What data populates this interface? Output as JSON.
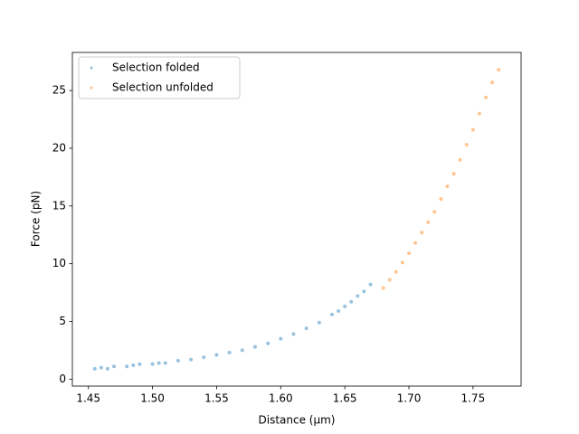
{
  "chart_data": {
    "type": "scatter",
    "x_label": "Distance (μm)",
    "y_label": "Force (pN)",
    "xlim": [
      1.4375,
      1.7875
    ],
    "ylim": [
      -0.6,
      28.3
    ],
    "xticks": [
      {
        "value": 1.45,
        "label": "1.45"
      },
      {
        "value": 1.5,
        "label": "1.50"
      },
      {
        "value": 1.55,
        "label": "1.55"
      },
      {
        "value": 1.6,
        "label": "1.60"
      },
      {
        "value": 1.65,
        "label": "1.65"
      },
      {
        "value": 1.7,
        "label": "1.70"
      },
      {
        "value": 1.75,
        "label": "1.75"
      }
    ],
    "yticks": [
      0,
      5,
      10,
      15,
      20,
      25
    ],
    "legend": "upper left",
    "series": [
      {
        "name": "Selection folded",
        "color": "#1f77b4",
        "x": [
          1.455,
          1.46,
          1.465,
          1.47,
          1.48,
          1.485,
          1.49,
          1.5,
          1.505,
          1.51,
          1.52,
          1.53,
          1.54,
          1.55,
          1.56,
          1.57,
          1.58,
          1.59,
          1.6,
          1.61,
          1.62,
          1.63,
          1.64,
          1.645,
          1.65,
          1.655,
          1.66,
          1.665,
          1.67
        ],
        "values": [
          0.9,
          1.0,
          0.9,
          1.1,
          1.1,
          1.2,
          1.3,
          1.3,
          1.4,
          1.4,
          1.6,
          1.7,
          1.9,
          2.1,
          2.3,
          2.5,
          2.8,
          3.1,
          3.5,
          3.9,
          4.4,
          4.9,
          5.6,
          5.9,
          6.3,
          6.7,
          7.2,
          7.6,
          8.2
        ]
      },
      {
        "name": "Selection unfolded",
        "color": "#ff7f0e",
        "x": [
          1.68,
          1.685,
          1.69,
          1.695,
          1.7,
          1.705,
          1.71,
          1.715,
          1.72,
          1.725,
          1.73,
          1.735,
          1.74,
          1.745,
          1.75,
          1.755,
          1.76,
          1.765,
          1.77
        ],
        "values": [
          7.9,
          8.6,
          9.3,
          10.1,
          10.9,
          11.8,
          12.7,
          13.6,
          14.5,
          15.6,
          16.7,
          17.8,
          19.0,
          20.3,
          21.6,
          23.0,
          24.4,
          25.7,
          26.8
        ]
      }
    ]
  }
}
